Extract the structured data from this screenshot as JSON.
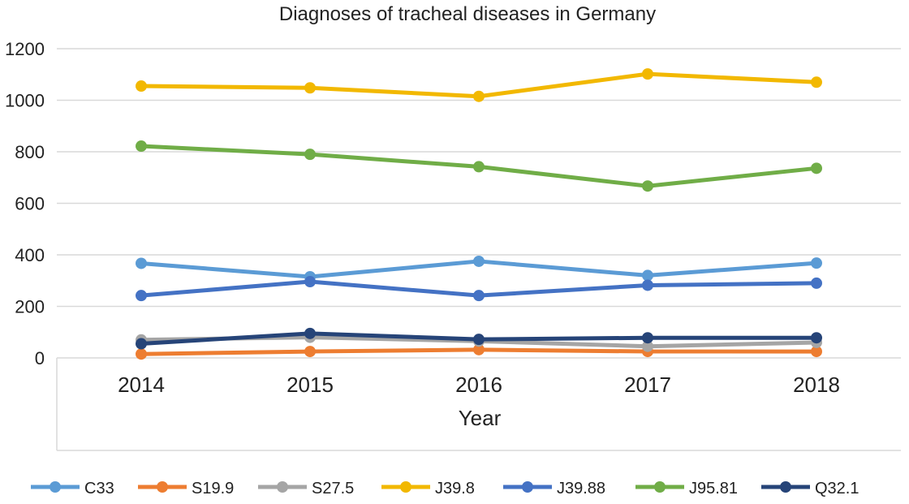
{
  "chart_data": {
    "type": "line",
    "title": "Diagnoses of tracheal diseases in Germany",
    "xlabel": "Year",
    "ylabel": "",
    "categories": [
      "2014",
      "2015",
      "2016",
      "2017",
      "2018"
    ],
    "ylim": [
      0,
      1200
    ],
    "yticks": [
      "0",
      "200",
      "400",
      "600",
      "800",
      "1000",
      "1200"
    ],
    "grid": true,
    "legend_position": "bottom",
    "series": [
      {
        "name": "C33",
        "color": "#5B9BD5",
        "values": [
          367,
          315,
          375,
          320,
          368
        ]
      },
      {
        "name": "S19.9",
        "color": "#ED7D31",
        "values": [
          15,
          25,
          32,
          25,
          25
        ]
      },
      {
        "name": "S27.5",
        "color": "#A5A5A5",
        "values": [
          70,
          80,
          65,
          45,
          60
        ]
      },
      {
        "name": "J39.8",
        "color": "#F2B800",
        "values": [
          1055,
          1048,
          1015,
          1102,
          1070
        ]
      },
      {
        "name": "J39.88",
        "color": "#4472C4",
        "values": [
          242,
          296,
          242,
          282,
          290
        ]
      },
      {
        "name": "J95.81",
        "color": "#70AD47",
        "values": [
          822,
          790,
          742,
          667,
          736
        ]
      },
      {
        "name": "Q32.1",
        "color": "#264478",
        "values": [
          55,
          95,
          72,
          78,
          78
        ]
      }
    ]
  }
}
